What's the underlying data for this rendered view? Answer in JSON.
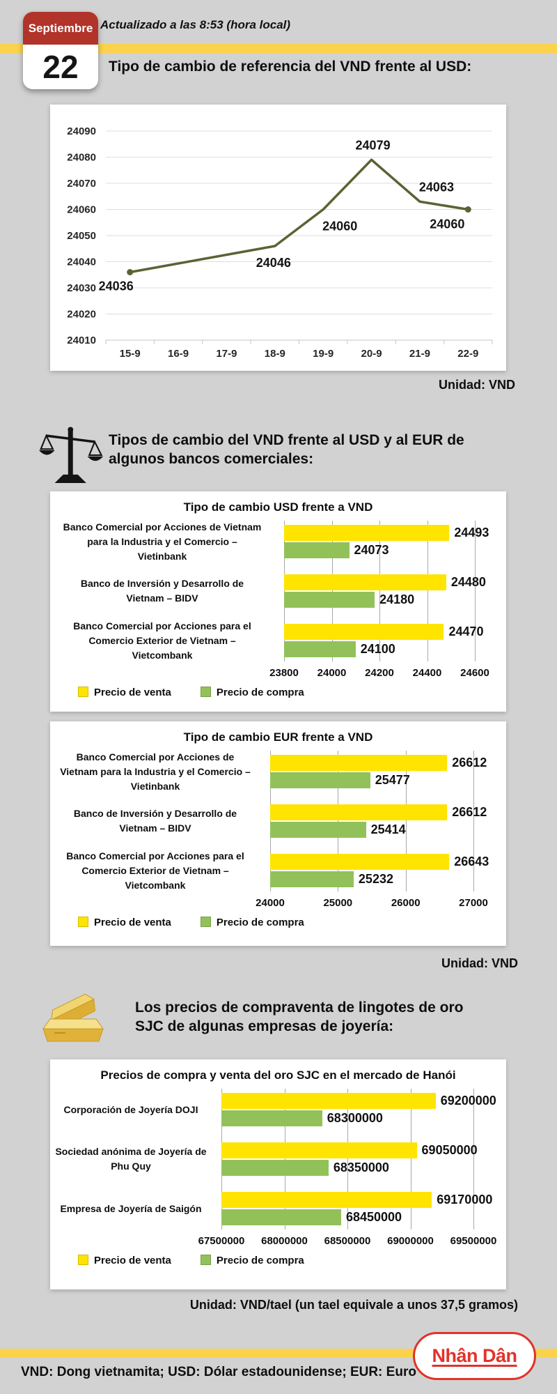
{
  "header": {
    "month": "Septiembre",
    "day": "22",
    "updated": "Actualizado a las 8:53 (hora local)"
  },
  "sections": {
    "reference": {
      "title": "Tipo de cambio de referencia del VND frente al USD:",
      "unit": "Unidad: VND"
    },
    "banks": {
      "title": "Tipos de cambio del VND frente al USD y al EUR de\nalgunos bancos comerciales:",
      "unit": "Unidad: VND"
    },
    "gold": {
      "title": "Los precios de compraventa de lingotes de oro\nSJC de algunas empresas de joyería:",
      "unit": "Unidad: VND/tael (un tael equivale a unos 37,5 gramos)"
    }
  },
  "footer": {
    "glossary": "VND: Dong vietnamita; USD: Dólar estadounidense; EUR: Euro",
    "logo": "Nhân Dân"
  },
  "colors": {
    "background": "#d2d2d2",
    "stripe_yellow": "#fbd24b",
    "calendar_red": "#b23329",
    "line_olive": "#5c6233",
    "venta_yellow": "#ffe400",
    "compra_green": "#92c15a",
    "logo_red": "#e2322a"
  },
  "chart_data": [
    {
      "type": "line",
      "title": "",
      "unit": "VND",
      "categories": [
        "15-9",
        "16-9",
        "17-9",
        "18-9",
        "19-9",
        "20-9",
        "21-9",
        "22-9"
      ],
      "ylim": [
        24010,
        24090
      ],
      "ytick_step": 10,
      "grid": true,
      "line_color": "#5c6233",
      "markers": [
        "15-9",
        "22-9"
      ],
      "points": [
        {
          "category": "15-9",
          "value": 24036,
          "offset": [
            -20,
            26
          ]
        },
        {
          "category": "18-9",
          "value": 24046,
          "offset": [
            -2,
            30
          ]
        },
        {
          "category": "19-9",
          "value": 24060,
          "offset": [
            24,
            30
          ]
        },
        {
          "category": "20-9",
          "value": 24079,
          "offset": [
            2,
            -15
          ]
        },
        {
          "category": "21-9",
          "value": 24063,
          "offset": [
            24,
            -15
          ]
        },
        {
          "category": "22-9",
          "value": 24060,
          "offset": [
            -30,
            27
          ]
        }
      ]
    },
    {
      "type": "bar",
      "title": "Tipo de cambio USD frente a VND",
      "orientation": "horizontal",
      "categories": [
        "Banco Comercial por Acciones de Vietnam\npara la Industria y el Comercio –\nVietinbank",
        "Banco de Inversión y Desarrollo de\nVietnam – BIDV",
        "Banco Comercial por Acciones para el\nComercio Exterior de Vietnam –\nVietcombank"
      ],
      "series": [
        {
          "name": "Precio de venta",
          "color": "#ffe400",
          "values": [
            24493,
            24480,
            24470
          ]
        },
        {
          "name": "Precio de compra",
          "color": "#92c15a",
          "values": [
            24073,
            24180,
            24100
          ]
        }
      ],
      "xlim": [
        23800,
        24600
      ],
      "xticks": [
        23800,
        24000,
        24200,
        24400,
        24600
      ],
      "legend_position": "bottom-left"
    },
    {
      "type": "bar",
      "title": "Tipo de cambio EUR frente a VND",
      "orientation": "horizontal",
      "categories": [
        "Banco Comercial por Acciones de\nVietnam para la Industria y el Comercio –\nVietinbank",
        "Banco de Inversión y Desarrollo de\nVietnam – BIDV",
        "Banco Comercial por Acciones para el\nComercio Exterior de Vietnam –\nVietcombank"
      ],
      "series": [
        {
          "name": "Precio de venta",
          "color": "#ffe400",
          "values": [
            26612,
            26612,
            26643
          ]
        },
        {
          "name": "Precio de compra",
          "color": "#92c15a",
          "values": [
            25477,
            25414,
            25232
          ]
        }
      ],
      "xlim": [
        24000,
        27000
      ],
      "xticks": [
        24000,
        25000,
        26000,
        27000
      ],
      "legend_position": "bottom-left"
    },
    {
      "type": "bar",
      "title": "Precios de compra y venta del oro SJC en el mercado de Hanói",
      "orientation": "horizontal",
      "categories": [
        "Corporación de Joyería DOJI",
        "Sociedad anónima de Joyería de\nPhu Quy",
        "Empresa de Joyería de Saigón"
      ],
      "series": [
        {
          "name": "Precio de venta",
          "color": "#ffe400",
          "values": [
            69200000,
            69050000,
            69170000
          ]
        },
        {
          "name": "Precio de compra",
          "color": "#92c15a",
          "values": [
            68300000,
            68350000,
            68450000
          ]
        }
      ],
      "xlim": [
        67500000,
        69500000
      ],
      "xticks": [
        67500000,
        68000000,
        68500000,
        69000000,
        69500000
      ],
      "legend_position": "bottom-left"
    }
  ]
}
